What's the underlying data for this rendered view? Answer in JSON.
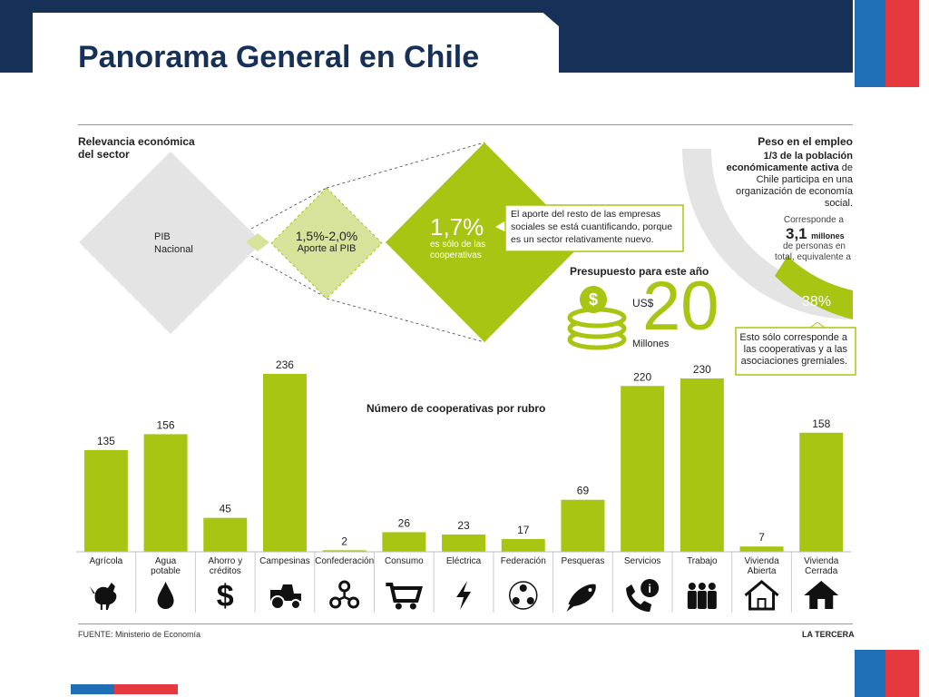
{
  "title": "Panorama General en Chile",
  "colors": {
    "navy": "#163057",
    "green": "#a8c514",
    "grey": "#e4e4e4",
    "lightgreen": "#d7e39a",
    "blue": "#1e6fb5",
    "red": "#e5383f"
  },
  "relevance": {
    "heading_line1": "Relevancia económica",
    "heading_line2": "del sector",
    "pib_line1": "PIB",
    "pib_line2": "Nacional",
    "range_value": "1,5%-2,0%",
    "range_label": "Aporte al PIB",
    "coop_value": "1,7%",
    "coop_line1": "es sólo de las",
    "coop_line2": "cooperativas",
    "note_line1": "El aporte del resto de las empresas",
    "note_line2": "sociales se está cuantificando, porque",
    "note_line3": "es un sector relativamente nuevo."
  },
  "budget": {
    "heading": "Presupuesto para este año",
    "currency": "US$",
    "value": "20",
    "unit": "Millones"
  },
  "employment": {
    "heading": "Peso en el empleo",
    "line1": "1/3 de la población",
    "line2_bold": "económicamente activa",
    "line2_rest": " de",
    "line3": "Chile participa en una",
    "line4": "organización de economía",
    "line5": "social.",
    "corresponde": "Corresponde a",
    "millones_value": "3,1",
    "millones_word": "millones",
    "personas": "de personas en",
    "total": "total, equivalente a",
    "percent": "38%",
    "note_line1": "Esto sólo corresponde a",
    "note_line2": "las cooperativas y a las",
    "note_line3": "asociaciones gremiales."
  },
  "footer": {
    "source": "FUENTE: Ministerio de Economía",
    "brand": "LA TERCERA"
  },
  "chart_data": {
    "type": "bar",
    "title": "Número de cooperativas por rubro",
    "categories": [
      "Agrícola",
      "Agua potable",
      "Ahorro y créditos",
      "Campesinas",
      "Confederación",
      "Consumo",
      "Eléctrica",
      "Federación",
      "Pesqueras",
      "Servicios",
      "Trabajo",
      "Vivienda Abierta",
      "Vivienda Cerrada"
    ],
    "category_lines": [
      [
        "Agrícola"
      ],
      [
        "Agua",
        "potable"
      ],
      [
        "Ahorro y",
        "créditos"
      ],
      [
        "Campesinas"
      ],
      [
        "Confederación"
      ],
      [
        "Consumo"
      ],
      [
        "Eléctrica"
      ],
      [
        "Federación"
      ],
      [
        "Pesqueras"
      ],
      [
        "Servicios"
      ],
      [
        "Trabajo"
      ],
      [
        "Vivienda",
        "Abierta"
      ],
      [
        "Vivienda",
        "Cerrada"
      ]
    ],
    "values": [
      135,
      156,
      45,
      236,
      2,
      26,
      23,
      17,
      69,
      220,
      230,
      7,
      158
    ],
    "icons": [
      "rooster-icon",
      "water-drop-icon",
      "dollar-icon",
      "tractor-icon",
      "network-icon",
      "shopping-cart-icon",
      "lightning-icon",
      "people-network-icon",
      "fish-icon",
      "phone-info-icon",
      "workers-icon",
      "house-outline-icon",
      "house-icon"
    ],
    "color": "#a8c514",
    "ylim": [
      0,
      236
    ]
  }
}
